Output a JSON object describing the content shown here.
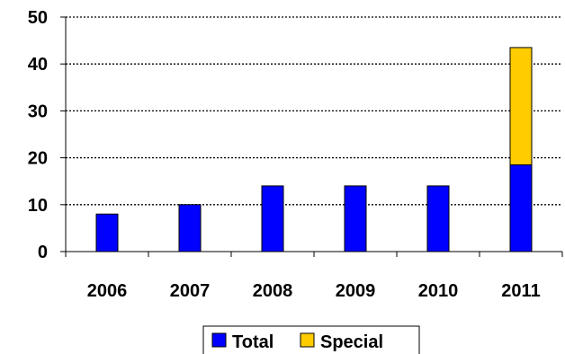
{
  "chart_data": {
    "type": "bar",
    "stacked": true,
    "categories": [
      "2006",
      "2007",
      "2008",
      "2009",
      "2010",
      "2011"
    ],
    "series": [
      {
        "name": "Total",
        "color": "#0000FF",
        "values": [
          8,
          10,
          14,
          14,
          14,
          18.5
        ]
      },
      {
        "name": "Special",
        "color": "#FFCC00",
        "values": [
          0,
          0,
          0,
          0,
          0,
          25
        ]
      }
    ],
    "ylim": [
      0,
      50
    ],
    "yticks": [
      "0",
      "10",
      "20",
      "30",
      "40",
      "50"
    ],
    "grid": true,
    "grid_style": "dotted",
    "legend_position": "bottom"
  }
}
